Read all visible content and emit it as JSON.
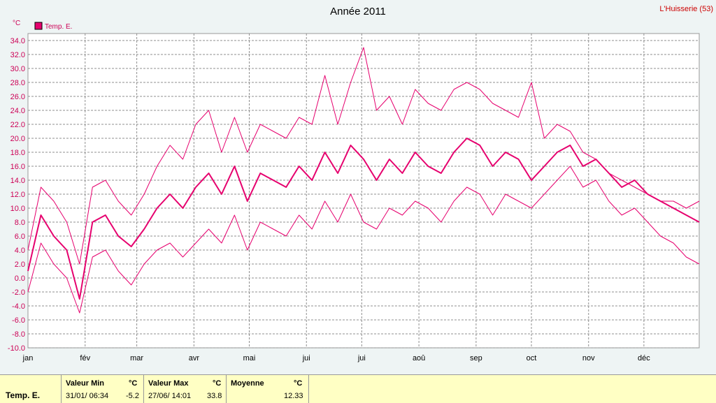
{
  "title": "Année 2011",
  "station": "L'Huisserie (53)",
  "y_unit": "°C",
  "legend": {
    "label": "Temp. E.",
    "color": "#e6006e"
  },
  "chart_data": {
    "type": "line",
    "title": "Année 2011",
    "xlabel": "",
    "ylabel": "°C",
    "ylim": [
      -10,
      35
    ],
    "yticks": [
      "-10.0",
      "-8.0",
      "-6.0",
      "-4.0",
      "-2.0",
      "0.0",
      "2.0",
      "4.0",
      "6.0",
      "8.0",
      "10.0",
      "12.0",
      "14.0",
      "16.0",
      "18.0",
      "20.0",
      "22.0",
      "24.0",
      "26.0",
      "28.0",
      "30.0",
      "32.0",
      "34.0"
    ],
    "xlim": [
      1,
      365
    ],
    "month_labels": [
      "jan",
      "fév",
      "mar",
      "avr",
      "mai",
      "jui",
      "jui",
      "aoû",
      "sep",
      "oct",
      "nov",
      "déc"
    ],
    "month_days": [
      1,
      32,
      60,
      91,
      121,
      152,
      182,
      213,
      244,
      274,
      305,
      335
    ],
    "grid": true,
    "legend_position": "top-left",
    "series": [
      {
        "name": "Temp. E.",
        "role": "mean",
        "color": "#e6006e",
        "x": [
          1,
          8,
          15,
          22,
          29,
          36,
          43,
          50,
          57,
          64,
          71,
          78,
          85,
          92,
          99,
          106,
          113,
          120,
          127,
          134,
          141,
          148,
          155,
          162,
          169,
          176,
          183,
          190,
          197,
          204,
          211,
          218,
          225,
          232,
          239,
          246,
          253,
          260,
          267,
          274,
          281,
          288,
          295,
          302,
          309,
          316,
          323,
          330,
          337,
          344,
          351,
          358,
          365
        ],
        "y": [
          1,
          9,
          6,
          4,
          -3,
          8,
          9,
          6,
          4.5,
          7,
          10,
          12,
          10,
          13,
          15,
          12,
          16,
          11,
          15,
          14,
          13,
          16,
          14,
          18,
          15,
          19,
          17,
          14,
          17,
          15,
          18,
          16,
          15,
          18,
          20,
          19,
          16,
          18,
          17,
          14,
          16,
          18,
          19,
          16,
          17,
          15,
          13,
          14,
          12,
          11,
          10,
          9,
          8
        ]
      },
      {
        "name": "",
        "role": "max",
        "color": "#e6006e",
        "x": [
          1,
          8,
          15,
          22,
          29,
          36,
          43,
          50,
          57,
          64,
          71,
          78,
          85,
          92,
          99,
          106,
          113,
          120,
          127,
          134,
          141,
          148,
          155,
          162,
          169,
          176,
          183,
          190,
          197,
          204,
          211,
          218,
          225,
          232,
          239,
          246,
          253,
          260,
          267,
          274,
          281,
          288,
          295,
          302,
          309,
          316,
          323,
          330,
          337,
          344,
          351,
          358,
          365
        ],
        "y": [
          4,
          13,
          11,
          8,
          2,
          13,
          14,
          11,
          9,
          12,
          16,
          19,
          17,
          22,
          24,
          18,
          23,
          18,
          22,
          21,
          20,
          23,
          22,
          29,
          22,
          28,
          33,
          24,
          26,
          22,
          27,
          25,
          24,
          27,
          28,
          27,
          25,
          24,
          23,
          28,
          20,
          22,
          21,
          18,
          17,
          15,
          14,
          13,
          12,
          11,
          11,
          10,
          11
        ]
      },
      {
        "name": "",
        "role": "min",
        "color": "#e6006e",
        "x": [
          1,
          8,
          15,
          22,
          29,
          36,
          43,
          50,
          57,
          64,
          71,
          78,
          85,
          92,
          99,
          106,
          113,
          120,
          127,
          134,
          141,
          148,
          155,
          162,
          169,
          176,
          183,
          190,
          197,
          204,
          211,
          218,
          225,
          232,
          239,
          246,
          253,
          260,
          267,
          274,
          281,
          288,
          295,
          302,
          309,
          316,
          323,
          330,
          337,
          344,
          351,
          358,
          365
        ],
        "y": [
          -2,
          5,
          2,
          0,
          -5,
          3,
          4,
          1,
          -1,
          2,
          4,
          5,
          3,
          5,
          7,
          5,
          9,
          4,
          8,
          7,
          6,
          9,
          7,
          11,
          8,
          12,
          8,
          7,
          10,
          9,
          11,
          10,
          8,
          11,
          13,
          12,
          9,
          12,
          11,
          10,
          12,
          14,
          16,
          13,
          14,
          11,
          9,
          10,
          8,
          6,
          5,
          3,
          2
        ]
      }
    ]
  },
  "stats": {
    "series_label": "Temp. E.",
    "min_header": "Valeur Min",
    "min_unit": "°C",
    "min_time": "31/01/  06:34",
    "min_value": "-5.2",
    "max_header": "Valeur Max",
    "max_unit": "°C",
    "max_time": "27/06/  14:01",
    "max_value": "33.8",
    "avg_header": "Moyenne",
    "avg_unit": "°C",
    "avg_value": "12.33"
  }
}
